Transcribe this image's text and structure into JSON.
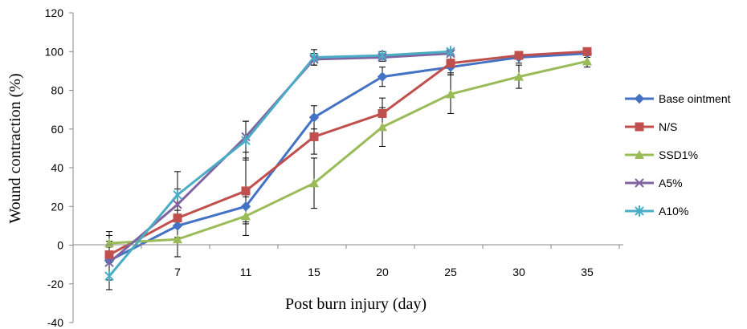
{
  "chart_data": {
    "type": "line",
    "xlabel": "Post burn injury (day)",
    "ylabel": "Wound contraction (%)",
    "categories": [
      "",
      "7",
      "11",
      "15",
      "20",
      "25",
      "30",
      "35"
    ],
    "ylim": [
      -40,
      120
    ],
    "yticks": [
      -40,
      -20,
      0,
      20,
      40,
      60,
      80,
      100,
      120
    ],
    "grid": false,
    "legend_position": "right",
    "series": [
      {
        "name": "Base ointment",
        "color": "#4472C4",
        "marker": "diamond",
        "values": [
          -8,
          10,
          20,
          66,
          87,
          92,
          97,
          99
        ],
        "errors": [
          10,
          6,
          8,
          6,
          5,
          4,
          3,
          2
        ]
      },
      {
        "name": "N/S",
        "color": "#C0504D",
        "marker": "square",
        "values": [
          -5,
          14,
          28,
          56,
          68,
          94,
          98,
          100
        ],
        "errors": [
          4,
          4,
          17,
          9,
          8,
          5,
          2,
          1
        ]
      },
      {
        "name": "SSD1%",
        "color": "#9BBB59",
        "marker": "triangle",
        "values": [
          1,
          3,
          15,
          32,
          61,
          78,
          87,
          95
        ],
        "errors": [
          6,
          9,
          10,
          13,
          10,
          10,
          6,
          3
        ]
      },
      {
        "name": "A5%",
        "color": "#8064A2",
        "marker": "x",
        "values": [
          -9,
          21,
          56,
          96,
          97,
          99,
          null,
          null
        ],
        "errors": [
          14,
          8,
          8,
          3,
          2,
          1,
          0,
          0
        ]
      },
      {
        "name": "A10%",
        "color": "#4BACC6",
        "marker": "star",
        "values": [
          -16,
          26,
          54,
          97,
          98,
          100,
          null,
          null
        ],
        "errors": [
          7,
          12,
          10,
          4,
          2,
          1,
          0,
          0
        ]
      }
    ]
  }
}
